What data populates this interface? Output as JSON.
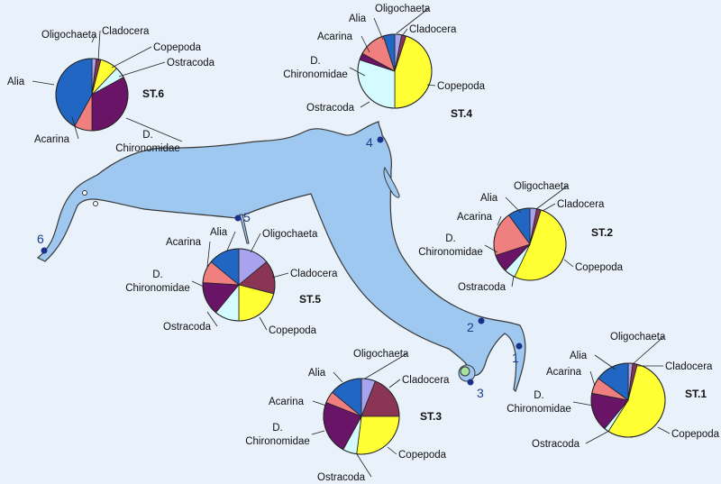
{
  "colors": {
    "lake": "#9ec8ef",
    "lake_outline": "#3a3a3a",
    "station_dot": "#1c2f8a",
    "station_number": "#1f3c8c",
    "taxa": {
      "Oligochaeta": "#a8a3ef",
      "Cladocera": "#8a3556",
      "Copepoda": "#ffff33",
      "Ostracoda": "#d4fbff",
      "Chironomidae": "#6a1468",
      "Acarina": "#f08080",
      "Alia": "#2266c4"
    }
  },
  "map": {
    "station_markers": [
      {
        "label": "1"
      },
      {
        "label": "2"
      },
      {
        "label": "3"
      },
      {
        "label": "4"
      },
      {
        "label": "5"
      },
      {
        "label": "6"
      }
    ]
  },
  "chart_data": [
    {
      "type": "pie",
      "title": "ST.6",
      "series": [
        {
          "values": [
            {
              "label": "Oligochaeta",
              "taxon": "Oligochaeta",
              "value": 2
            },
            {
              "label": "Cladocera",
              "taxon": "Cladocera",
              "value": 2
            },
            {
              "label": "Copepoda",
              "taxon": "Copepoda",
              "value": 8
            },
            {
              "label": "Ostracoda",
              "taxon": "Ostracoda",
              "value": 5
            },
            {
              "label": "D. Chironomidae",
              "taxon": "Chironomidae",
              "value": 33
            },
            {
              "label": "Acarina",
              "taxon": "Acarina",
              "value": 8
            },
            {
              "label": "Alia",
              "taxon": "Alia",
              "value": 42
            }
          ]
        }
      ]
    },
    {
      "type": "pie",
      "title": "ST.4",
      "series": [
        {
          "values": [
            {
              "label": "Oligochaeta",
              "taxon": "Oligochaeta",
              "value": 3
            },
            {
              "label": "Cladocera",
              "taxon": "Cladocera",
              "value": 2
            },
            {
              "label": "Copepoda",
              "taxon": "Copepoda",
              "value": 45
            },
            {
              "label": "Ostracoda",
              "taxon": "Ostracoda",
              "value": 30
            },
            {
              "label": "D. Chironomidae",
              "taxon": "Chironomidae",
              "value": 3
            },
            {
              "label": "Acarina",
              "taxon": "Acarina",
              "value": 12
            },
            {
              "label": "Alia",
              "taxon": "Alia",
              "value": 5
            }
          ]
        }
      ]
    },
    {
      "type": "pie",
      "title": "ST.2",
      "series": [
        {
          "values": [
            {
              "label": "Oligochaeta",
              "taxon": "Oligochaeta",
              "value": 3
            },
            {
              "label": "Cladocera",
              "taxon": "Cladocera",
              "value": 2
            },
            {
              "label": "Copepoda",
              "taxon": "Copepoda",
              "value": 52
            },
            {
              "label": "Ostracoda",
              "taxon": "Ostracoda",
              "value": 5
            },
            {
              "label": "D. Chironomidae",
              "taxon": "Chironomidae",
              "value": 8
            },
            {
              "label": "Acarina",
              "taxon": "Acarina",
              "value": 20
            },
            {
              "label": "Alia",
              "taxon": "Alia",
              "value": 10
            }
          ]
        }
      ]
    },
    {
      "type": "pie",
      "title": "ST.5",
      "series": [
        {
          "values": [
            {
              "label": "Oligochaeta",
              "taxon": "Oligochaeta",
              "value": 14
            },
            {
              "label": "Cladocera",
              "taxon": "Cladocera",
              "value": 15
            },
            {
              "label": "Copepoda",
              "taxon": "Copepoda",
              "value": 21
            },
            {
              "label": "Ostracoda",
              "taxon": "Ostracoda",
              "value": 11
            },
            {
              "label": "D. Chironomidae",
              "taxon": "Chironomidae",
              "value": 15
            },
            {
              "label": "Acarina",
              "taxon": "Acarina",
              "value": 10
            },
            {
              "label": "Alia",
              "taxon": "Alia",
              "value": 14
            }
          ]
        }
      ]
    },
    {
      "type": "pie",
      "title": "ST.3",
      "series": [
        {
          "values": [
            {
              "label": "Oligochaeta",
              "taxon": "Oligochaeta",
              "value": 6
            },
            {
              "label": "Cladocera",
              "taxon": "Cladocera",
              "value": 19
            },
            {
              "label": "Copepoda",
              "taxon": "Copepoda",
              "value": 27
            },
            {
              "label": "Ostracoda",
              "taxon": "Ostracoda",
              "value": 6
            },
            {
              "label": "D. Chironomidae",
              "taxon": "Chironomidae",
              "value": 23
            },
            {
              "label": "Acarina",
              "taxon": "Acarina",
              "value": 5
            },
            {
              "label": "Alia",
              "taxon": "Alia",
              "value": 14
            }
          ]
        }
      ]
    },
    {
      "type": "pie",
      "title": "ST.1",
      "series": [
        {
          "values": [
            {
              "label": "Oligochaeta",
              "taxon": "Oligochaeta",
              "value": 2
            },
            {
              "label": "Cladocera",
              "taxon": "Cladocera",
              "value": 2
            },
            {
              "label": "Copepoda",
              "taxon": "Copepoda",
              "value": 55
            },
            {
              "label": "Ostracoda",
              "taxon": "Ostracoda",
              "value": 2
            },
            {
              "label": "D. Chironomidae",
              "taxon": "Chironomidae",
              "value": 17
            },
            {
              "label": "Acarina",
              "taxon": "Acarina",
              "value": 7
            },
            {
              "label": "Alia",
              "taxon": "Alia",
              "value": 15
            }
          ]
        }
      ]
    }
  ]
}
